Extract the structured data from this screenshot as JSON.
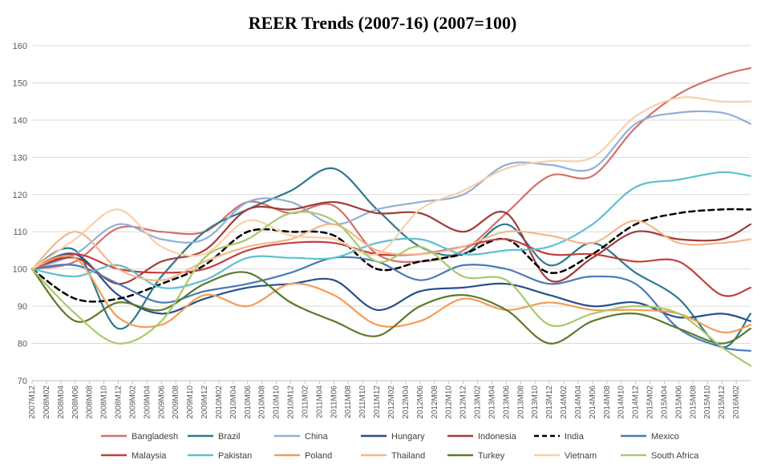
{
  "chart_data": {
    "type": "line",
    "title": "REER Trends (2007-16) (2007=100)",
    "xlabel": "",
    "ylabel": "",
    "ylim": [
      70,
      160
    ],
    "yticks": [
      70,
      80,
      90,
      100,
      110,
      120,
      130,
      140,
      150,
      160
    ],
    "grid": true,
    "legend_position": "bottom",
    "x_start": "2007M12",
    "x_end": "2016M04",
    "x_tick_labels": [
      "2007M12",
      "2008M02",
      "2008M04",
      "2008M06",
      "2008M08",
      "2008M10",
      "2008M12",
      "2009M02",
      "2009M04",
      "2009M06",
      "2009M08",
      "2009M10",
      "2009M12",
      "2010M02",
      "2010M04",
      "2010M06",
      "2010M08",
      "2010M10",
      "2010M12",
      "2011M02",
      "2011M04",
      "2011M06",
      "2011M08",
      "2011M10",
      "2011M12",
      "2012M02",
      "2012M04",
      "2012M06",
      "2012M08",
      "2012M10",
      "2012M12",
      "2013M02",
      "2013M04",
      "2013M06",
      "2013M08",
      "2013M10",
      "2013M12",
      "2014M02",
      "2014M04",
      "2014M06",
      "2014M08",
      "2014M10",
      "2014M12",
      "2015M02",
      "2015M04",
      "2015M06",
      "2015M08",
      "2015M10",
      "2015M12",
      "2016M02"
    ],
    "series_x": [
      "2007M12",
      "2008M06",
      "2008M12",
      "2009M06",
      "2009M12",
      "2010M06",
      "2010M12",
      "2011M06",
      "2011M12",
      "2012M06",
      "2012M12",
      "2013M06",
      "2013M12",
      "2014M06",
      "2014M12",
      "2015M06",
      "2015M12",
      "2016M04"
    ],
    "series": [
      {
        "name": "Bangladesh",
        "color": "#d4706b",
        "dash": false,
        "values": [
          100,
          102,
          111,
          110,
          110,
          118,
          115,
          117,
          104,
          102,
          105,
          115,
          125,
          125,
          138,
          147,
          152,
          154
        ]
      },
      {
        "name": "Brazil",
        "color": "#2b7a8c",
        "dash": false,
        "values": [
          100,
          105,
          84,
          98,
          110,
          116,
          121,
          127,
          116,
          106,
          104,
          112,
          101,
          107,
          99,
          92,
          79,
          88
        ]
      },
      {
        "name": "China",
        "color": "#8fb0d8",
        "dash": false,
        "values": [
          100,
          104,
          112,
          108,
          108,
          118,
          118,
          112,
          116,
          118,
          120,
          128,
          128,
          127,
          139,
          142,
          142,
          139
        ]
      },
      {
        "name": "Hungary",
        "color": "#284f8c",
        "dash": false,
        "values": [
          100,
          104,
          93,
          88,
          92,
          95,
          96,
          97,
          89,
          94,
          95,
          96,
          93,
          90,
          91,
          87,
          88,
          86
        ]
      },
      {
        "name": "Indonesia",
        "color": "#a13b38",
        "dash": false,
        "values": [
          100,
          103,
          96,
          102,
          105,
          116,
          116,
          118,
          115,
          115,
          110,
          115,
          97,
          103,
          110,
          108,
          108,
          112
        ]
      },
      {
        "name": "India",
        "color": "#000000",
        "dash": true,
        "values": [
          100,
          92,
          92,
          96,
          101,
          110,
          110,
          109,
          100,
          102,
          104,
          108,
          99,
          104,
          112,
          115,
          116,
          116
        ]
      },
      {
        "name": "Mexico",
        "color": "#4a7ab8",
        "dash": false,
        "values": [
          100,
          101,
          96,
          91,
          94,
          96,
          99,
          103,
          102,
          97,
          101,
          100,
          96,
          98,
          96,
          84,
          79,
          78
        ]
      },
      {
        "name": "Malaysia",
        "color": "#c0403f",
        "dash": false,
        "values": [
          100,
          104,
          100,
          99,
          100,
          105,
          107,
          107,
          104,
          104,
          106,
          108,
          104,
          104,
          102,
          102,
          93,
          95
        ]
      },
      {
        "name": "Pakistan",
        "color": "#5fbfcf",
        "dash": false,
        "values": [
          100,
          98,
          101,
          95,
          97,
          103,
          103,
          103,
          107,
          108,
          104,
          105,
          106,
          112,
          122,
          124,
          126,
          125
        ]
      },
      {
        "name": "Poland",
        "color": "#f39c55",
        "dash": false,
        "values": [
          100,
          103,
          87,
          85,
          93,
          90,
          96,
          93,
          85,
          86,
          92,
          89,
          91,
          89,
          89,
          88,
          83,
          85
        ]
      },
      {
        "name": "Thailand",
        "color": "#f5b68a",
        "dash": false,
        "values": [
          100,
          110,
          100,
          97,
          102,
          106,
          108,
          112,
          105,
          104,
          106,
          110,
          109,
          107,
          113,
          107,
          107,
          108
        ]
      },
      {
        "name": "Turkey",
        "color": "#5a7a2a",
        "dash": false,
        "values": [
          100,
          86,
          91,
          89,
          96,
          99,
          91,
          86,
          82,
          90,
          93,
          89,
          80,
          86,
          88,
          84,
          80,
          84
        ]
      },
      {
        "name": "Vietnam",
        "color": "#f9cfa8",
        "dash": false,
        "values": [
          100,
          108,
          116,
          106,
          104,
          113,
          109,
          108,
          104,
          116,
          121,
          127,
          129,
          130,
          141,
          146,
          145,
          145
        ]
      },
      {
        "name": "South Africa",
        "color": "#a8c96a",
        "dash": false,
        "values": [
          100,
          88,
          80,
          86,
          103,
          108,
          115,
          113,
          102,
          106,
          98,
          97,
          85,
          88,
          90,
          88,
          79,
          74
        ]
      }
    ]
  }
}
